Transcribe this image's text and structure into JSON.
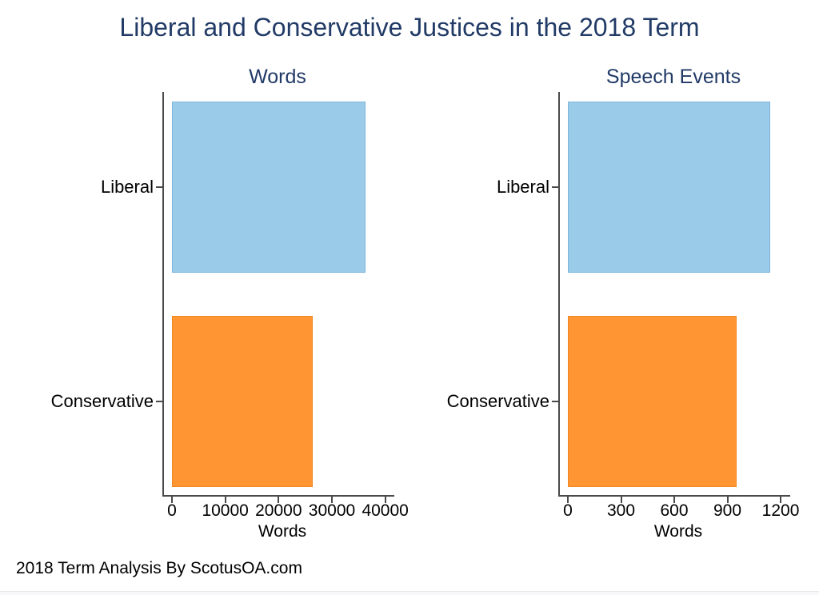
{
  "page": {
    "title": "Liberal and Conservative Justices in the 2018 Term",
    "footer": "2018 Term Analysis By ScotusOA.com"
  },
  "colors": {
    "title_navy": "#213a66",
    "axis_line": "#4a4a4a",
    "liberal_blue": "#9acbe9",
    "liberal_blue_border": "#7fb5de",
    "conservative_orange": "#ff9633",
    "conservative_orange_border": "#f08820"
  },
  "chart_data": [
    {
      "type": "bar",
      "orientation": "horizontal",
      "title": "Words",
      "categories": [
        "Liberal",
        "Conservative"
      ],
      "values": [
        36300,
        26400
      ],
      "xlabel": "Words",
      "xticks": [
        0,
        10000,
        20000,
        30000,
        40000
      ],
      "xtick_labels": [
        "0",
        "10000",
        "20000",
        "30000",
        "40000"
      ],
      "xlim": [
        0,
        41400
      ],
      "grid": false,
      "legend": "none",
      "bar_color_names": [
        "liberal_blue",
        "conservative_orange"
      ]
    },
    {
      "type": "bar",
      "orientation": "horizontal",
      "title": "Speech Events",
      "categories": [
        "Liberal",
        "Conservative"
      ],
      "values": [
        1140,
        950
      ],
      "xlabel": "Words",
      "xticks": [
        0,
        300,
        600,
        900,
        1200
      ],
      "xtick_labels": [
        "0",
        "300",
        "600",
        "900",
        "1200"
      ],
      "xlim": [
        0,
        1245
      ],
      "grid": false,
      "legend": "none",
      "bar_color_names": [
        "liberal_blue",
        "conservative_orange"
      ]
    }
  ]
}
